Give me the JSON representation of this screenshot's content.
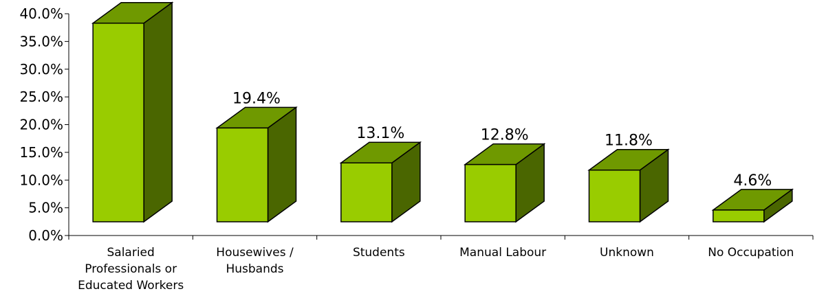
{
  "chart_data": {
    "type": "bar",
    "categories": [
      [
        "Salaried",
        "Professionals or",
        "Educated Workers"
      ],
      [
        "Housewives /",
        "Husbands"
      ],
      [
        "Students"
      ],
      [
        "Manual Labour"
      ],
      [
        "Unknown"
      ],
      [
        "No Occupation"
      ]
    ],
    "values": [
      38.3,
      19.4,
      13.1,
      12.8,
      11.8,
      4.6
    ],
    "data_labels": [
      "",
      "19.4%",
      "13.1%",
      "12.8%",
      "11.8%",
      "4.6%"
    ],
    "yticks": [
      "0.0%",
      "5.0%",
      "10.0%",
      "15.0%",
      "20.0%",
      "25.0%",
      "30.0%",
      "35.0%",
      "40.0%"
    ],
    "ylim": [
      0,
      40
    ],
    "title": "",
    "xlabel": "",
    "ylabel": "",
    "colors": {
      "front": "#99CC00",
      "top": "#6F9900",
      "side": "#4A6600",
      "outline": "#000000"
    }
  }
}
